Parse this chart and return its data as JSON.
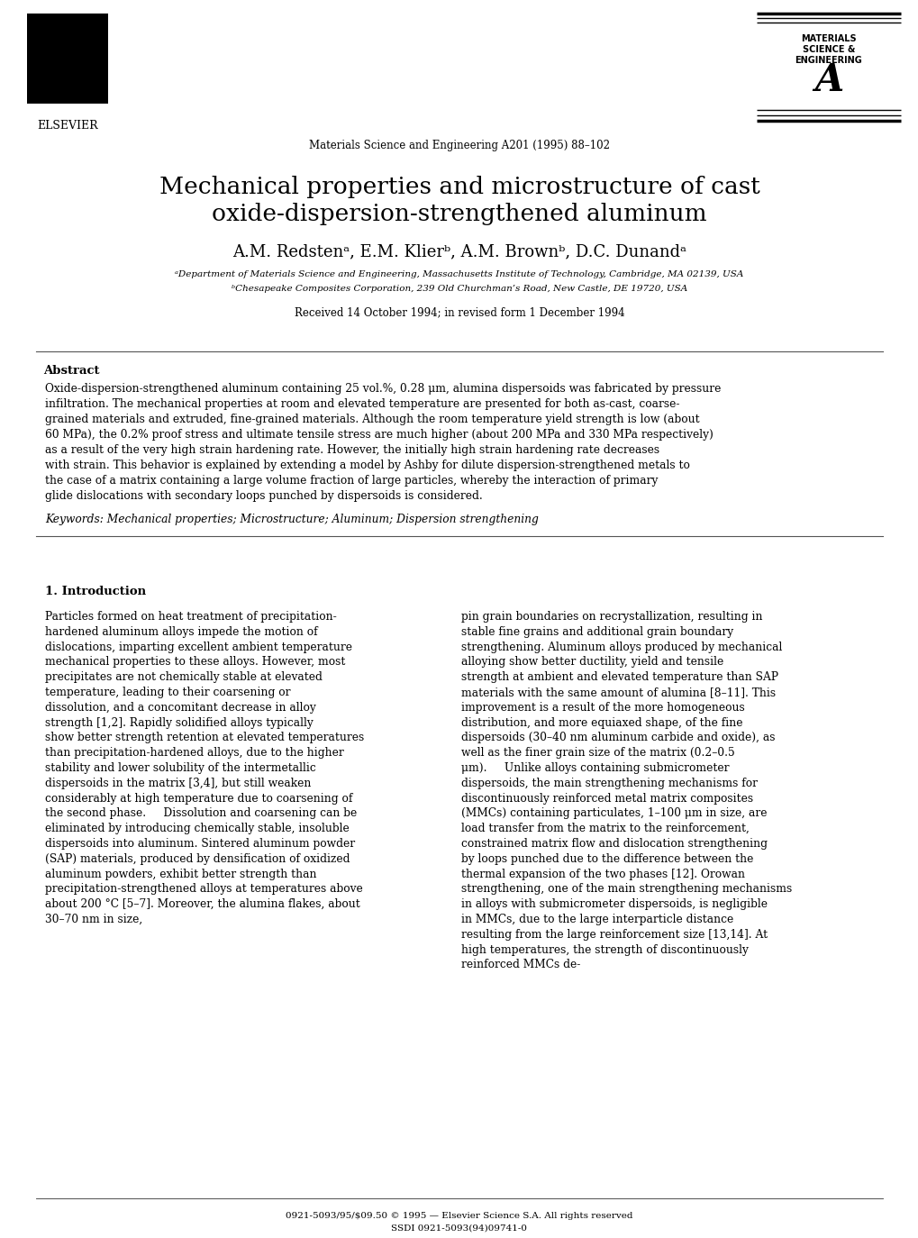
{
  "bg_color": "#ffffff",
  "header_journal": "Materials Science and Engineering A201 (1995) 88–102",
  "title_line1": "Mechanical properties and microstructure of cast",
  "title_line2": "oxide-dispersion-strengthened aluminum",
  "authors": "A.M. Redstenᵃ, E.M. Klierᵇ, A.M. Brownᵇ, D.C. Dunandᵃ",
  "affil_a": "ᵃDepartment of Materials Science and Engineering, Massachusetts Institute of Technology, Cambridge, MA 02139, USA",
  "affil_b": "ᵇChesapeake Composites Corporation, 239 Old Churchman’s Road, New Castle, DE 19720, USA",
  "received": "Received 14 October 1994; in revised form 1 December 1994",
  "abstract_heading": "Abstract",
  "abstract_text": "Oxide-dispersion-strengthened aluminum containing 25 vol.%, 0.28 μm, alumina dispersoids was fabricated by pressure infiltration. The mechanical properties at room and elevated temperature are presented for both as-cast, coarse-grained materials and extruded, fine-grained materials. Although the room temperature yield strength is low (about 60 MPa), the 0.2% proof stress and ultimate tensile stress are much higher (about 200 MPa and 330 MPa respectively) as a result of the very high strain hardening rate. However, the initially high strain hardening rate decreases with strain. This behavior is explained by extending a model by Ashby for dilute dispersion-strengthened metals to the case of a matrix containing a large volume fraction of large particles, whereby the interaction of primary glide dislocations with secondary loops punched by dispersoids is considered.",
  "keywords_text": "Keywords: Mechanical properties; Microstructure; Aluminum; Dispersion strengthening",
  "section1_heading": "1. Introduction",
  "intro_left": "Particles formed on heat treatment of precipitation-hardened aluminum alloys impede the motion of dislocations, imparting excellent ambient temperature mechanical properties to these alloys. However, most precipitates are not chemically stable at elevated temperature, leading to their coarsening or dissolution, and a concomitant decrease in alloy strength [1,2]. Rapidly solidified alloys typically show better strength retention at elevated temperatures than precipitation-hardened alloys, due to the higher stability and lower solubility of the intermetallic dispersoids in the matrix [3,4], but still weaken considerably at high temperature due to coarsening of the second phase.\n    Dissolution and coarsening can be eliminated by introducing chemically stable, insoluble dispersoids into aluminum. Sintered aluminum powder (SAP) materials, produced by densification of oxidized aluminum powders, exhibit better strength than precipitation-strengthened alloys at temperatures above about 200 °C [5–7]. Moreover, the alumina flakes, about 30–70 nm in size,",
  "intro_right": "pin grain boundaries on recrystallization, resulting in stable fine grains and additional grain boundary strengthening. Aluminum alloys produced by mechanical alloying show better ductility, yield and tensile strength at ambient and elevated temperature than SAP materials with the same amount of alumina [8–11]. This improvement is a result of the more homogeneous distribution, and more equiaxed shape, of the fine dispersoids (30–40 nm aluminum carbide and oxide), as well as the finer grain size of the matrix (0.2–0.5 μm).\n    Unlike alloys containing submicrometer dispersoids, the main strengthening mechanisms for discontinuously reinforced metal matrix composites (MMCs) containing particulates, 1–100 μm in size, are load transfer from the matrix to the reinforcement, constrained matrix flow and dislocation strengthening by loops punched due to the difference between the thermal expansion of the two phases [12]. Orowan strengthening, one of the main strengthening mechanisms in alloys with submicrometer dispersoids, is negligible in MMCs, due to the large interparticle distance resulting from the large reinforcement size [13,14]. At high temperatures, the strength of discontinuously reinforced MMCs de-",
  "footer_text1": "0921-5093/95/$09.50 © 1995 — Elsevier Science S.A. All rights reserved",
  "footer_text2": "SSDI 0921-5093(94)09741-0"
}
